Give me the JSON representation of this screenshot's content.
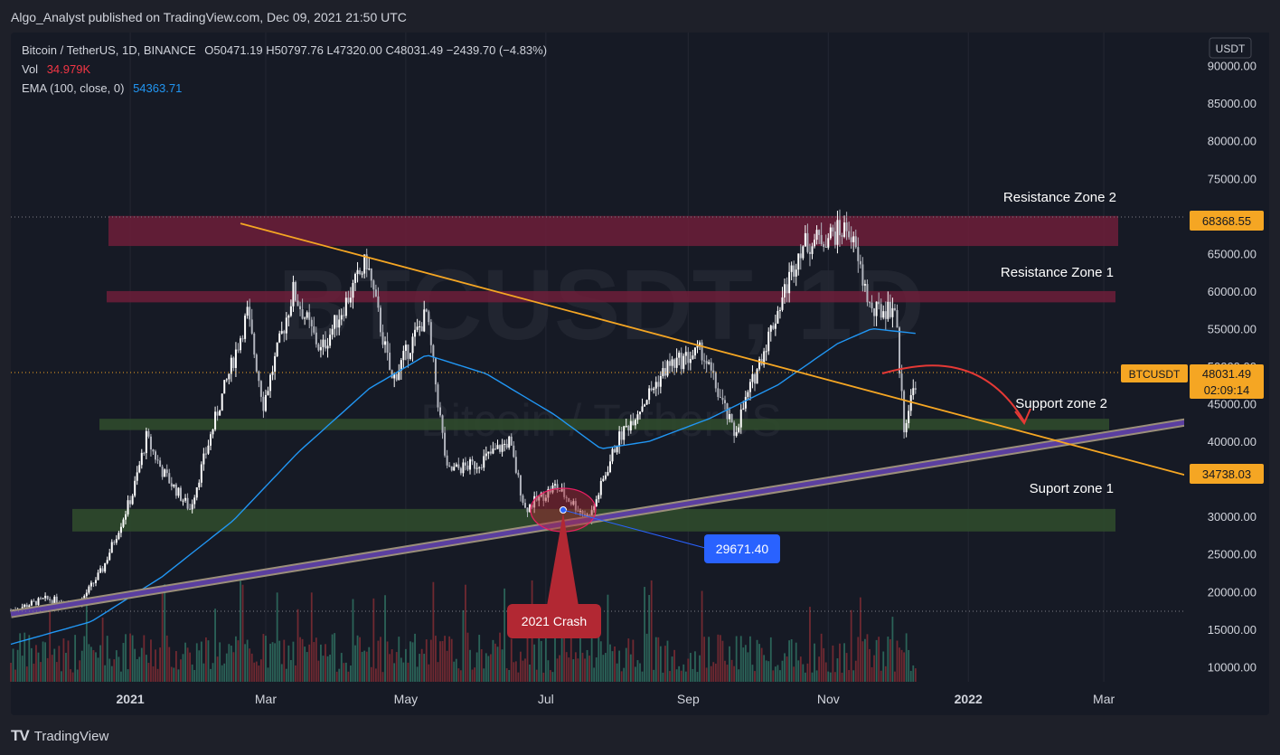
{
  "header": {
    "publisher_line": "Algo_Analyst published on TradingView.com, Dec 09, 2021 21:50 UTC"
  },
  "legend": {
    "symbol_line": "Bitcoin / TetherUS, 1D, BINANCE",
    "ohlc": "O50471.19  H50797.76  L47320.00  C48031.49  −2439.70 (−4.83%)",
    "vol_label": "Vol",
    "vol_value": "34.979K",
    "ema_label": "EMA (100, close, 0)",
    "ema_value": "54363.71"
  },
  "watermark": {
    "ticker": "BTCUSDT, 1D",
    "name": "Bitcoin / TetherUS"
  },
  "price_scale": {
    "currency": "USDT",
    "ticks": [
      "10000.00",
      "15000.00",
      "20000.00",
      "25000.00",
      "30000.00",
      "35000.00",
      "40000.00",
      "45000.00",
      "50000.00",
      "55000.00",
      "60000.00",
      "65000.00",
      "70000.00",
      "75000.00",
      "80000.00",
      "85000.00",
      "90000.00"
    ],
    "badges": {
      "resistance_price": "68368.55",
      "symbol": "BTCUSDT",
      "last_price": "48031.49",
      "countdown": "02:09:14",
      "trendline_price": "34738.03"
    }
  },
  "time_scale": {
    "labels": [
      "2021",
      "Mar",
      "May",
      "Jul",
      "Sep",
      "Nov",
      "2022",
      "Mar"
    ]
  },
  "annotations": {
    "resistance_zone_2": "Resistance Zone 2",
    "resistance_zone_1": "Resistance Zone 1",
    "support_zone_2": "Support zone 2",
    "support_zone_1": "Suport zone 1",
    "crash_label": "2021 Crash",
    "low_price_label": "29671.40"
  },
  "footer": {
    "brand": "TradingView"
  },
  "colors": {
    "up": "#ffffff",
    "down": "#d1d4dc",
    "ema": "#2196f3",
    "trendline": "#f5a623",
    "resistance_zone": "#6d1f3a",
    "support_zone": "#2f4a2c",
    "support_trend": "#7b61a8",
    "crash": "#b22833",
    "low_label": "#2962ff",
    "price_badge": "#f5a623"
  },
  "chart_data": {
    "type": "candlestick",
    "symbol": "BTCUSDT",
    "interval": "1D",
    "ylim": [
      8000,
      92000
    ],
    "x_range": [
      "2020-11-10",
      "2022-04-05"
    ],
    "last_price": 48031.49,
    "ema_100_last": 54363.71,
    "zones": [
      {
        "name": "Resistance Zone 2",
        "from": 66000,
        "to": 70000
      },
      {
        "name": "Resistance Zone 1",
        "from": 58500,
        "to": 60000
      },
      {
        "name": "Support zone 2",
        "from": 41500,
        "to": 43000
      },
      {
        "name": "Suport zone 1",
        "from": 28000,
        "to": 31000
      }
    ],
    "trendline_down": [
      {
        "x": "2021-02-18",
        "y": 69000
      },
      {
        "x": "2022-04-15",
        "y": 34738.03
      }
    ],
    "trendline_up": [
      {
        "x": "2020-11-10",
        "y": 17000
      },
      {
        "x": "2022-04-15",
        "y": 43000
      }
    ],
    "price_path": [
      [
        "2020-11-10",
        17500
      ],
      [
        "2020-11-25",
        19000
      ],
      [
        "2020-12-10",
        18500
      ],
      [
        "2020-12-20",
        23000
      ],
      [
        "2021-01-02",
        33000
      ],
      [
        "2021-01-08",
        40500
      ],
      [
        "2021-01-15",
        36000
      ],
      [
        "2021-01-27",
        31000
      ],
      [
        "2021-02-08",
        44000
      ],
      [
        "2021-02-21",
        57000
      ],
      [
        "2021-02-28",
        45000
      ],
      [
        "2021-03-13",
        60000
      ],
      [
        "2021-03-25",
        52000
      ],
      [
        "2021-04-14",
        64000
      ],
      [
        "2021-04-25",
        48000
      ],
      [
        "2021-05-10",
        57000
      ],
      [
        "2021-05-19",
        36000
      ],
      [
        "2021-06-01",
        37000
      ],
      [
        "2021-06-15",
        40000
      ],
      [
        "2021-06-22",
        31000
      ],
      [
        "2021-07-05",
        34000
      ],
      [
        "2021-07-20",
        29671.4
      ],
      [
        "2021-08-01",
        40000
      ],
      [
        "2021-08-23",
        50000
      ],
      [
        "2021-09-07",
        52000
      ],
      [
        "2021-09-21",
        41000
      ],
      [
        "2021-10-06",
        54000
      ],
      [
        "2021-10-20",
        66000
      ],
      [
        "2021-11-10",
        68368.55
      ],
      [
        "2021-11-20",
        57000
      ],
      [
        "2021-11-30",
        58000
      ],
      [
        "2021-12-04",
        42000
      ],
      [
        "2021-12-09",
        48031.49
      ]
    ],
    "ema_path": [
      [
        "2020-11-10",
        13000
      ],
      [
        "2020-12-15",
        16000
      ],
      [
        "2021-01-15",
        22000
      ],
      [
        "2021-02-15",
        29500
      ],
      [
        "2021-03-15",
        38500
      ],
      [
        "2021-04-15",
        47000
      ],
      [
        "2021-05-10",
        51500
      ],
      [
        "2021-06-05",
        49000
      ],
      [
        "2021-07-05",
        43500
      ],
      [
        "2021-07-25",
        39000
      ],
      [
        "2021-08-15",
        40000
      ],
      [
        "2021-09-10",
        43000
      ],
      [
        "2021-10-10",
        47500
      ],
      [
        "2021-11-05",
        53000
      ],
      [
        "2021-11-20",
        55000
      ],
      [
        "2021-12-09",
        54363.71
      ]
    ]
  }
}
